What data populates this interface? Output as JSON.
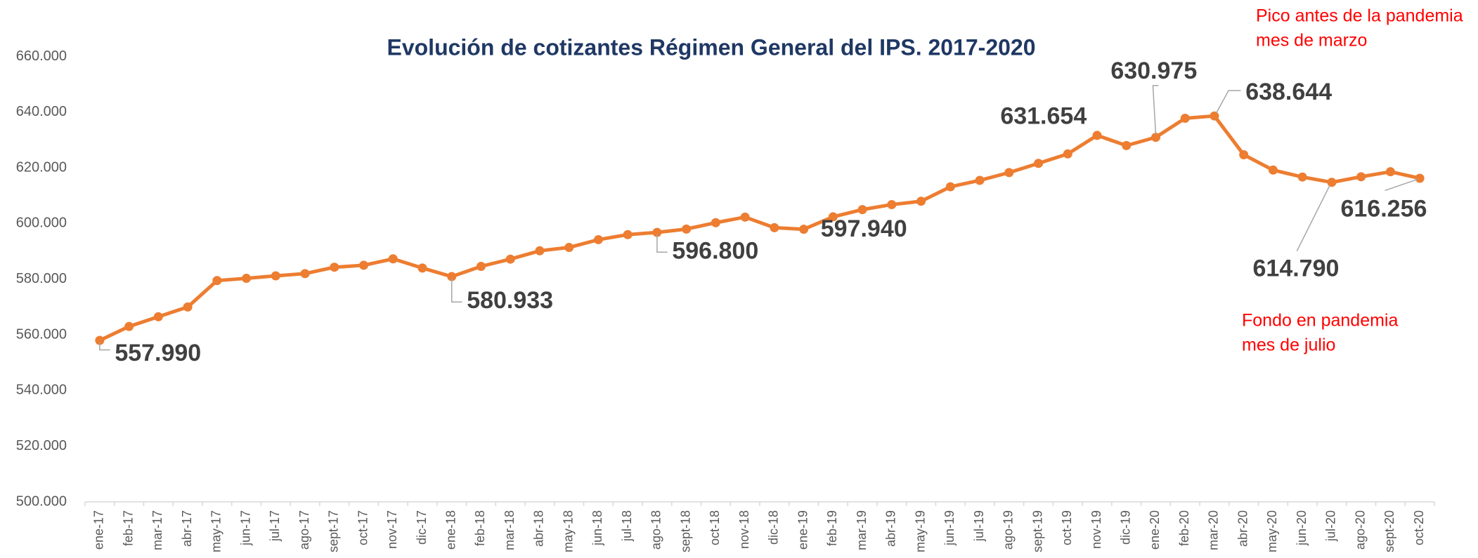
{
  "chart_data": {
    "type": "line",
    "title": "Evolución de cotizantes Régimen General del IPS. 2017-2020",
    "categories": [
      "ene-17",
      "feb-17",
      "mar-17",
      "abr-17",
      "may-17",
      "jun-17",
      "jul-17",
      "ago-17",
      "sept-17",
      "oct-17",
      "nov-17",
      "dic-17",
      "ene-18",
      "feb-18",
      "mar-18",
      "abr-18",
      "may-18",
      "jun-18",
      "jul-18",
      "ago-18",
      "sept-18",
      "oct-18",
      "nov-18",
      "dic-18",
      "ene-19",
      "feb-19",
      "mar-19",
      "abr-19",
      "may-19",
      "jun-19",
      "jul-19",
      "ago-19",
      "sept-19",
      "oct-19",
      "nov-19",
      "dic-19",
      "ene-20",
      "feb-20",
      "mar-20",
      "abr-20",
      "may-20",
      "jun-20",
      "jul-20",
      "ago-20",
      "sept-20",
      "oct-20"
    ],
    "series": [
      {
        "name": "Cotizantes",
        "color": "#ed7d31",
        "values": [
          557990,
          563000,
          566500,
          570000,
          579500,
          580300,
          581200,
          582000,
          584300,
          585000,
          587300,
          584000,
          580933,
          584600,
          587200,
          590200,
          591400,
          594200,
          596000,
          596800,
          598000,
          600300,
          602300,
          598500,
          597940,
          602400,
          605000,
          606800,
          608000,
          613200,
          615500,
          618300,
          621600,
          625000,
          631654,
          628000,
          630975,
          637800,
          638644,
          624700,
          619200,
          616700,
          614790,
          616800,
          618600,
          616256
        ],
        "value_labels": [
          "557.990",
          null,
          null,
          null,
          null,
          null,
          null,
          null,
          null,
          null,
          null,
          null,
          "580.933",
          null,
          null,
          null,
          null,
          null,
          null,
          "596.800",
          null,
          null,
          null,
          null,
          "597.940",
          null,
          null,
          null,
          null,
          null,
          null,
          null,
          null,
          null,
          "631.654",
          null,
          "630.975",
          null,
          "638.644",
          null,
          null,
          null,
          "614.790",
          null,
          null,
          "616.256"
        ]
      }
    ],
    "ylim": [
      500000,
      660000
    ],
    "yticks": [
      {
        "value": 500000,
        "label": "500.000"
      },
      {
        "value": 520000,
        "label": "520.000"
      },
      {
        "value": 540000,
        "label": "540.000"
      },
      {
        "value": 560000,
        "label": "560.000"
      },
      {
        "value": 580000,
        "label": "580.000"
      },
      {
        "value": 600000,
        "label": "600.000"
      },
      {
        "value": 620000,
        "label": "620.000"
      },
      {
        "value": 640000,
        "label": "640.000"
      },
      {
        "value": 660000,
        "label": "660.000"
      }
    ],
    "grid": false,
    "annotations": [
      {
        "lines": [
          "Pico antes de la pandemia",
          "mes de marzo"
        ],
        "color": "#ff0000"
      },
      {
        "lines": [
          "Fondo en pandemia",
          "mes de julio"
        ],
        "color": "#ff0000"
      }
    ]
  }
}
